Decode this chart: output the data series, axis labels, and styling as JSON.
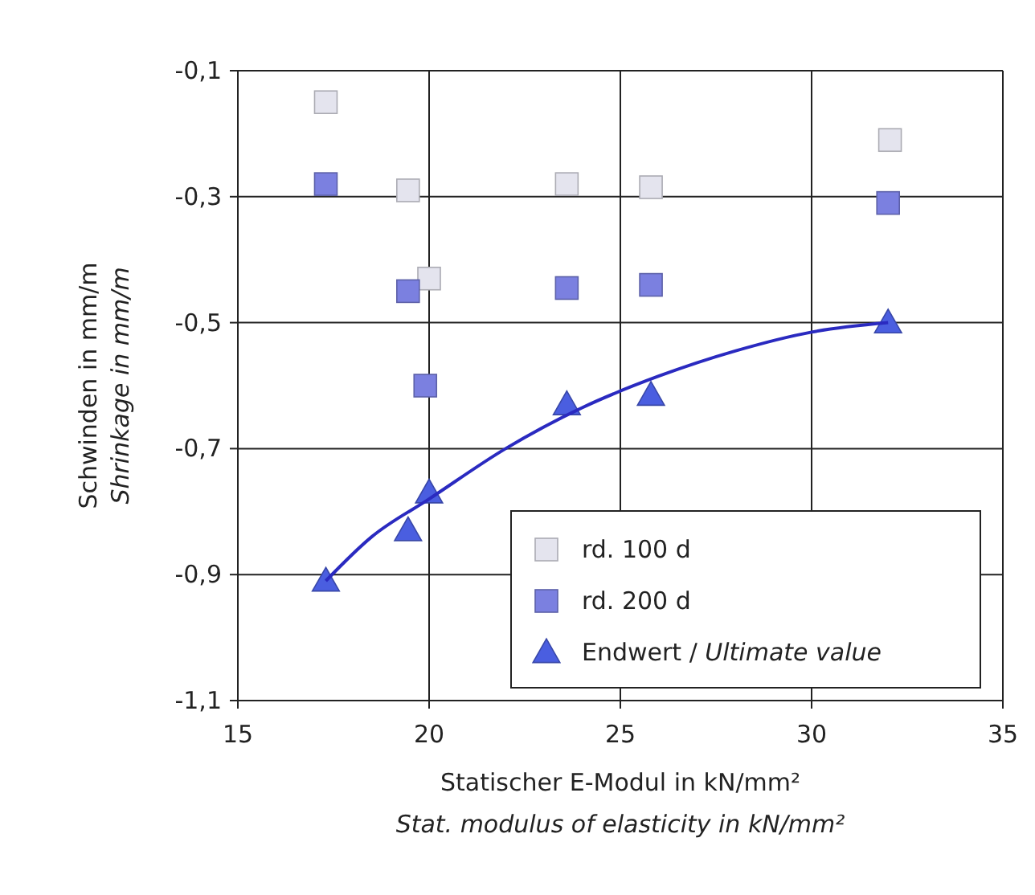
{
  "chart_data": {
    "type": "scatter",
    "xlabel": "Statischer E-Modul in kN/mm²\nStat. modulus of elasticity in kN/mm²",
    "ylabel": "Schwinden in mm/m\nShrinkage in mm/m",
    "xlim": [
      15,
      35
    ],
    "xticks": [
      15,
      20,
      25,
      30,
      35
    ],
    "ylim": [
      -1.1,
      -0.1
    ],
    "yticks": [
      {
        "value": -0.1,
        "label": "-0,1"
      },
      {
        "value": -0.3,
        "label": "-0,3"
      },
      {
        "value": -0.5,
        "label": "-0,5"
      },
      {
        "value": -0.7,
        "label": "-0,7"
      },
      {
        "value": -0.9,
        "label": "-0,9"
      },
      {
        "value": -1.1,
        "label": "-1,1"
      }
    ],
    "grid": true,
    "legend": "bottom right",
    "series": [
      {
        "name": "rd. 100 d",
        "color": "#e4e4ee",
        "marker": "square",
        "x": [
          17.3,
          19.45,
          20,
          23.6,
          25.8,
          32.05
        ],
        "values": [
          -0.15,
          -0.29,
          -0.43,
          -0.28,
          -0.285,
          -0.21
        ]
      },
      {
        "name": "rd. 200 d",
        "color": "#7b80e0",
        "marker": "square",
        "x": [
          17.3,
          19.45,
          19.9,
          23.6,
          25.8,
          32
        ],
        "values": [
          -0.28,
          -0.45,
          -0.6,
          -0.445,
          -0.44,
          -0.31
        ]
      },
      {
        "name": "Endwert / $_{}$Ultimate value",
        "color": "#4a5ee0",
        "marker": "triangle",
        "x": [
          17.3,
          19.45,
          20,
          23.6,
          25.8,
          32
        ],
        "values": [
          -0.91,
          -0.83,
          -0.77,
          -0.63,
          -0.615,
          -0.5
        ]
      },
      {
        "type": "line",
        "color": "#2a2ac0",
        "marker": "none",
        "line_style": "solid",
        "x": [
          17.3,
          18.5,
          20,
          22,
          24,
          26,
          28,
          30,
          32
        ],
        "values": [
          -0.91,
          -0.84,
          -0.78,
          -0.7,
          -0.635,
          -0.585,
          -0.545,
          -0.515,
          -0.5
        ]
      }
    ]
  }
}
